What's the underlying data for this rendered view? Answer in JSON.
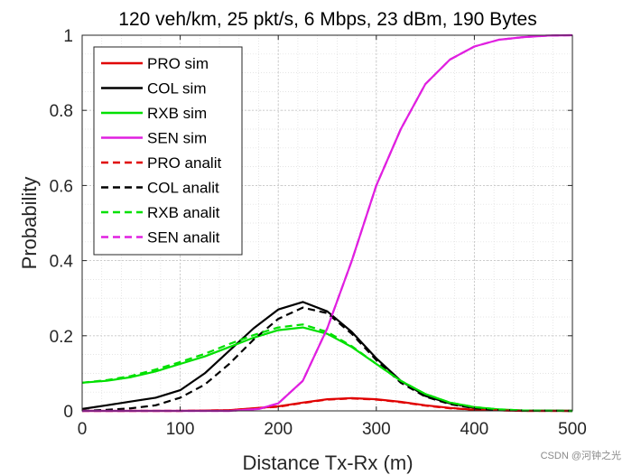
{
  "chart_data": {
    "type": "line",
    "title": "120 veh/km, 25 pkt/s, 6 Mbps, 23 dBm, 190 Bytes",
    "xlabel": "Distance Tx-Rx (m)",
    "ylabel": "Probability",
    "xlim": [
      0,
      500
    ],
    "ylim": [
      0,
      1
    ],
    "xticks": [
      0,
      100,
      200,
      300,
      400,
      500
    ],
    "xtick_labels": [
      "0",
      "100",
      "200",
      "300",
      "400",
      "500"
    ],
    "yticks": [
      0,
      0.2,
      0.4,
      0.6,
      0.8,
      1
    ],
    "ytick_labels": [
      "0",
      "0.2",
      "0.4",
      "0.6",
      "0.8",
      "1"
    ],
    "grid": "major and minor, dotted",
    "legend_position": "top-left",
    "series": [
      {
        "name": "PRO sim",
        "color": "#e00000",
        "dash": "solid",
        "x": [
          0,
          100,
          150,
          200,
          225,
          250,
          275,
          300,
          325,
          350,
          375,
          400,
          450,
          500
        ],
        "y": [
          0,
          0,
          0.002,
          0.012,
          0.022,
          0.031,
          0.034,
          0.031,
          0.024,
          0.015,
          0.008,
          0.003,
          0,
          0
        ]
      },
      {
        "name": "COL sim",
        "color": "#000000",
        "dash": "solid",
        "x": [
          0,
          25,
          50,
          75,
          100,
          125,
          150,
          175,
          200,
          225,
          250,
          275,
          300,
          325,
          350,
          375,
          400,
          425,
          450,
          500
        ],
        "y": [
          0.005,
          0.015,
          0.025,
          0.035,
          0.055,
          0.1,
          0.16,
          0.22,
          0.27,
          0.29,
          0.265,
          0.21,
          0.14,
          0.08,
          0.04,
          0.02,
          0.008,
          0.003,
          0.001,
          0
        ]
      },
      {
        "name": "RXB sim",
        "color": "#00e000",
        "dash": "solid",
        "x": [
          0,
          25,
          50,
          75,
          100,
          125,
          150,
          175,
          200,
          225,
          250,
          275,
          300,
          325,
          350,
          375,
          400,
          425,
          450,
          500
        ],
        "y": [
          0.075,
          0.08,
          0.09,
          0.105,
          0.125,
          0.145,
          0.17,
          0.195,
          0.215,
          0.222,
          0.205,
          0.17,
          0.125,
          0.08,
          0.045,
          0.022,
          0.01,
          0.004,
          0.001,
          0
        ]
      },
      {
        "name": "SEN sim",
        "color": "#e020e0",
        "dash": "solid",
        "x": [
          0,
          150,
          180,
          200,
          225,
          250,
          275,
          300,
          325,
          350,
          375,
          400,
          425,
          450,
          475,
          500
        ],
        "y": [
          0,
          0,
          0.005,
          0.02,
          0.08,
          0.22,
          0.4,
          0.6,
          0.75,
          0.87,
          0.935,
          0.97,
          0.988,
          0.995,
          0.999,
          1
        ]
      },
      {
        "name": "PRO analit",
        "color": "#e00000",
        "dash": "dashed",
        "x": [
          0,
          100,
          150,
          200,
          225,
          250,
          275,
          300,
          325,
          350,
          375,
          400,
          450,
          500
        ],
        "y": [
          0,
          0,
          0.002,
          0.011,
          0.021,
          0.03,
          0.033,
          0.03,
          0.023,
          0.014,
          0.007,
          0.003,
          0,
          0
        ]
      },
      {
        "name": "COL analit",
        "color": "#000000",
        "dash": "dashed",
        "x": [
          0,
          25,
          50,
          75,
          100,
          125,
          150,
          175,
          200,
          225,
          250,
          275,
          300,
          325,
          350,
          375,
          400,
          425,
          450,
          500
        ],
        "y": [
          0,
          0.003,
          0.007,
          0.015,
          0.035,
          0.07,
          0.125,
          0.19,
          0.245,
          0.275,
          0.26,
          0.205,
          0.135,
          0.075,
          0.038,
          0.018,
          0.007,
          0.002,
          0.001,
          0
        ]
      },
      {
        "name": "RXB analit",
        "color": "#00e000",
        "dash": "dashed",
        "x": [
          0,
          25,
          50,
          75,
          100,
          125,
          150,
          175,
          200,
          225,
          250,
          275,
          300,
          325,
          350,
          375,
          400,
          425,
          450,
          500
        ],
        "y": [
          0.075,
          0.082,
          0.093,
          0.11,
          0.13,
          0.152,
          0.178,
          0.202,
          0.222,
          0.23,
          0.21,
          0.172,
          0.125,
          0.08,
          0.045,
          0.022,
          0.01,
          0.004,
          0.001,
          0
        ]
      },
      {
        "name": "SEN analit",
        "color": "#e020e0",
        "dash": "dashed",
        "x": [
          0,
          150,
          180,
          200,
          225,
          250,
          275,
          300,
          325,
          350,
          375,
          400,
          425,
          450,
          475,
          500
        ],
        "y": [
          0,
          0,
          0.005,
          0.02,
          0.08,
          0.22,
          0.4,
          0.6,
          0.75,
          0.87,
          0.935,
          0.97,
          0.988,
          0.995,
          0.999,
          1
        ]
      }
    ]
  },
  "watermark": "CSDN @河钟之光"
}
